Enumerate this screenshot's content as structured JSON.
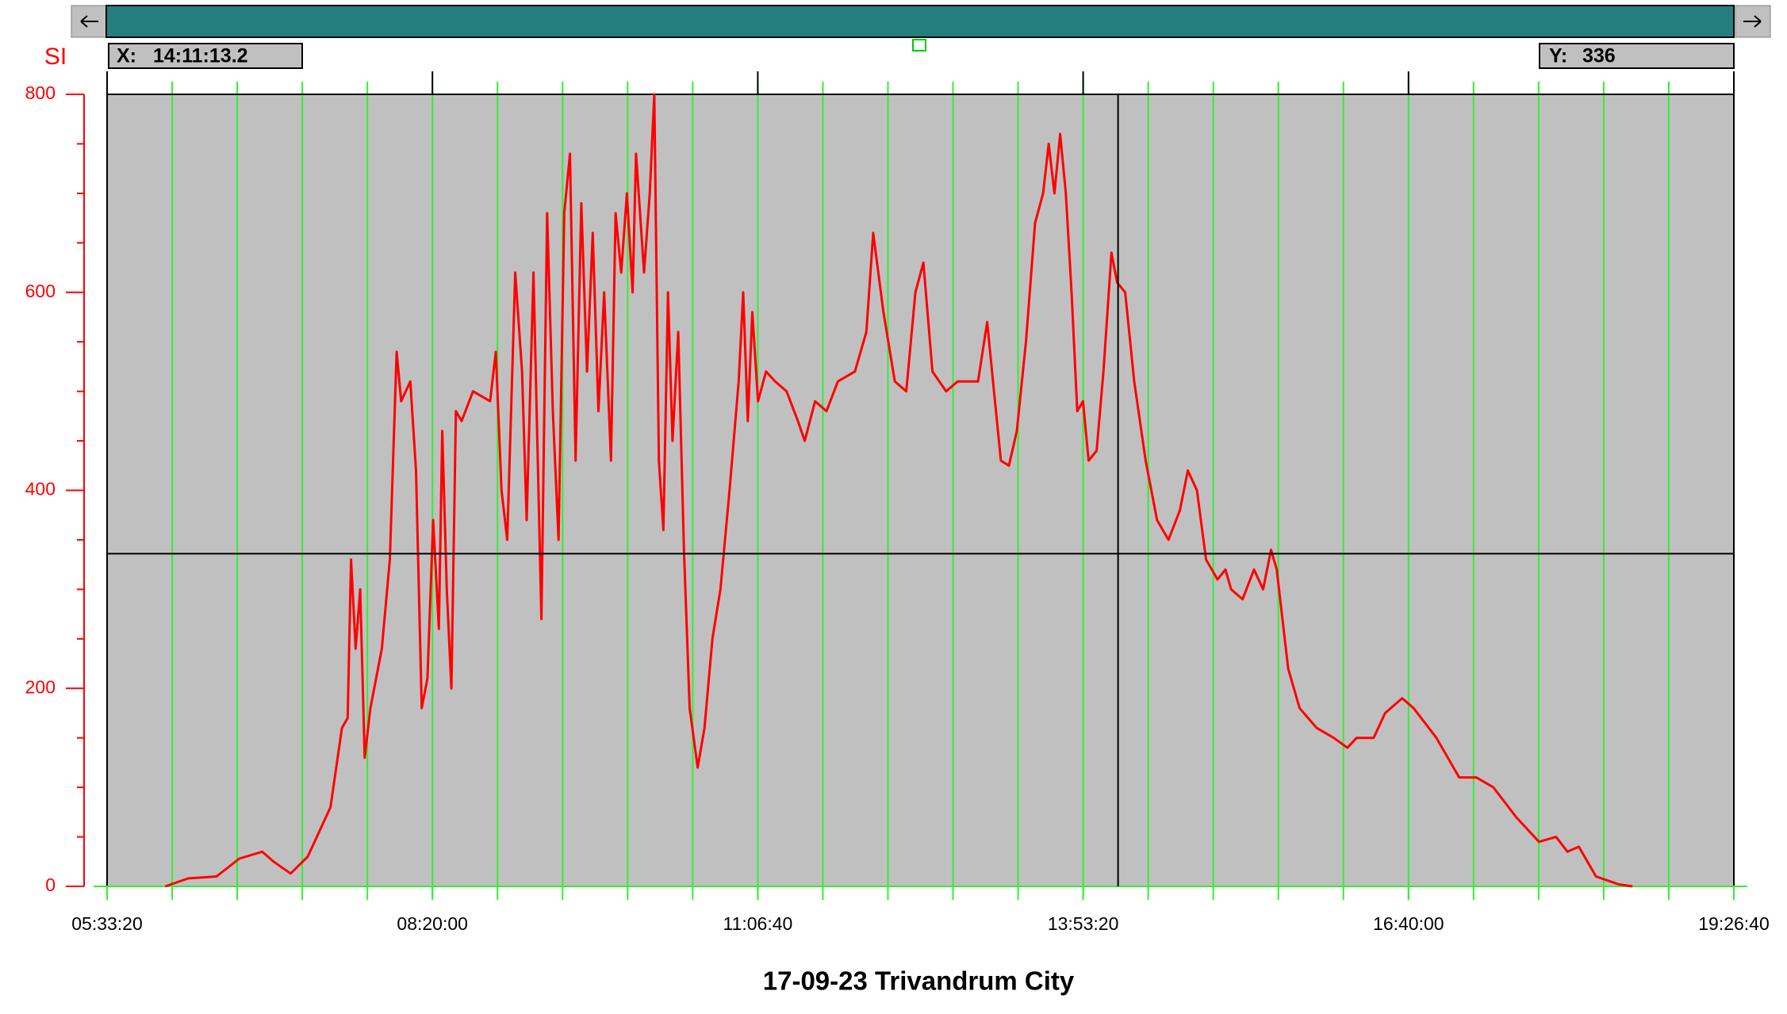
{
  "chart_data": {
    "type": "line",
    "title": "17-09-23 Trivandrum City",
    "y_label": "SI",
    "x": [
      21787,
      22488,
      23364,
      24065,
      24765,
      25116,
      25641,
      26167,
      26868,
      27218,
      27393,
      27499,
      27639,
      27779,
      27919,
      28094,
      28445,
      28690,
      28900,
      29040,
      29321,
      29496,
      29671,
      29846,
      30021,
      30197,
      30302,
      30442,
      30582,
      30722,
      30897,
      31248,
      31773,
      31949,
      32124,
      32299,
      32544,
      32755,
      32895,
      33105,
      33350,
      33525,
      33701,
      33876,
      34051,
      34226,
      34401,
      34577,
      34752,
      34927,
      35102,
      35277,
      35488,
      35628,
      35803,
      35978,
      36153,
      36259,
      36504,
      36679,
      36819,
      36959,
      37100,
      37240,
      37380,
      37555,
      37730,
      37905,
      38151,
      38361,
      38606,
      38852,
      39132,
      39412,
      39552,
      39692,
      39833,
      40008,
      40253,
      40533,
      40884,
      41234,
      41444,
      41760,
      42110,
      42461,
      42986,
      43337,
      43547,
      43862,
      44213,
      44563,
      44843,
      45089,
      45369,
      45789,
      46140,
      46490,
      46771,
      47051,
      47261,
      47471,
      47717,
      47962,
      48242,
      48523,
      48768,
      48943,
      49118,
      49293,
      49469,
      49644,
      49819,
      49994,
      50169,
      50415,
      50625,
      50870,
      51045,
      51291,
      51571,
      51921,
      52272,
      52622,
      52973,
      53218,
      53498,
      53779,
      54129,
      54374,
      54549,
      54900,
      55250,
      55531,
      55776,
      55951,
      56301,
      56652,
      57177,
      57703,
      58124,
      58404,
      58929,
      59280,
      59805,
      60156,
      60857,
      61557,
      62083,
      62609,
      63309,
      64010,
      64536,
      64886,
      65236,
      65762,
      66463,
      66884
    ],
    "series": [
      {
        "name": "SI",
        "color": "#ff0000",
        "values": [
          0,
          8,
          10,
          28,
          35,
          25,
          13,
          30,
          80,
          160,
          170,
          330,
          240,
          300,
          130,
          180,
          240,
          330,
          540,
          490,
          510,
          420,
          180,
          210,
          370,
          260,
          460,
          300,
          200,
          480,
          470,
          500,
          490,
          540,
          400,
          350,
          620,
          520,
          370,
          620,
          270,
          680,
          480,
          350,
          680,
          740,
          430,
          690,
          520,
          660,
          480,
          600,
          430,
          680,
          620,
          700,
          600,
          740,
          620,
          700,
          800,
          430,
          360,
          600,
          450,
          560,
          340,
          180,
          120,
          160,
          250,
          300,
          400,
          510,
          600,
          470,
          580,
          490,
          520,
          510,
          500,
          470,
          450,
          490,
          480,
          510,
          520,
          560,
          660,
          580,
          510,
          500,
          600,
          630,
          520,
          500,
          510,
          510,
          510,
          570,
          500,
          430,
          425,
          460,
          550,
          670,
          700,
          750,
          700,
          760,
          700,
          600,
          480,
          490,
          430,
          440,
          520,
          640,
          610,
          600,
          510,
          430,
          370,
          350,
          380,
          420,
          400,
          330,
          310,
          320,
          300,
          290,
          320,
          300,
          340,
          320,
          220,
          180,
          160,
          150,
          140,
          150,
          150,
          175,
          190,
          180,
          150,
          110,
          110,
          100,
          70,
          45,
          50,
          35,
          40,
          10,
          2,
          0
        ]
      }
    ],
    "xlim": [
      20000,
      70000
    ],
    "xticks": [
      {
        "value": 20000,
        "label": "05:33:20"
      },
      {
        "value": 30000,
        "label": "08:20:00"
      },
      {
        "value": 40000,
        "label": "11:06:40"
      },
      {
        "value": 50000,
        "label": "13:53:20"
      },
      {
        "value": 60000,
        "label": "16:40:00"
      },
      {
        "value": 70000,
        "label": "19:26:40"
      }
    ],
    "x_minor_ticks": [
      22000,
      24000,
      26000,
      28000,
      30000,
      32000,
      34000,
      36000,
      38000,
      40000,
      42000,
      44000,
      46000,
      48000,
      50000,
      52000,
      54000,
      56000,
      58000,
      60000,
      62000,
      64000,
      66000,
      68000
    ],
    "ylim": [
      0,
      800
    ],
    "yticks": [
      0,
      200,
      400,
      600,
      800
    ],
    "y_minor_ticks": [
      50,
      100,
      150,
      250,
      300,
      350,
      450,
      500,
      550,
      650,
      700,
      750
    ],
    "grid": true,
    "cursor": {
      "x_caption": "X:",
      "x_label": "14:11:13.2",
      "x": 51073.2,
      "y_caption": "Y:",
      "y": 336
    }
  }
}
